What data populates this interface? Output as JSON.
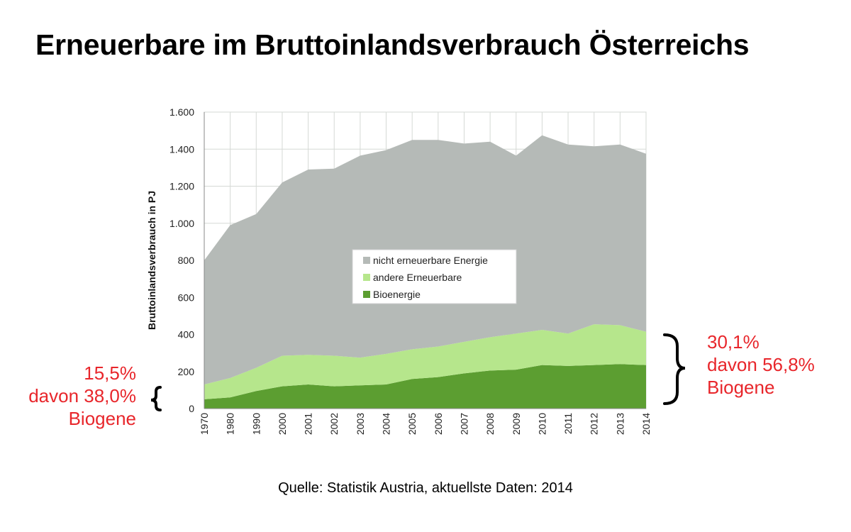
{
  "page": {
    "title": "Erneuerbare im Bruttoinlandsverbrauch Österreichs",
    "source": "Quelle: Statistik Austria, aktuellste Daten: 2014"
  },
  "annotations": {
    "left": [
      "15,5%",
      "davon 38,0%",
      "Biogene"
    ],
    "right": [
      "30,1%",
      "davon 56,8%",
      "Biogene"
    ],
    "color": "#e8262b"
  },
  "chart_data": {
    "type": "area",
    "stacked": true,
    "categories": [
      "1970",
      "1980",
      "1990",
      "2000",
      "2001",
      "2002",
      "2003",
      "2004",
      "2005",
      "2006",
      "2007",
      "2008",
      "2009",
      "2010",
      "2011",
      "2012",
      "2013",
      "2014"
    ],
    "ylabel": "Bruttoinlandsverbrauch in PJ",
    "ylim": [
      0,
      1600
    ],
    "yticks": [
      0,
      200,
      400,
      600,
      800,
      1000,
      1200,
      1400,
      1600
    ],
    "ytick_labels": [
      "0",
      "200",
      "400",
      "600",
      "800",
      "1.000",
      "1.200",
      "1.400",
      "1.600"
    ],
    "grid": true,
    "legend_position": "center",
    "series": [
      {
        "name": "Bioenergie",
        "color": "#5c9e31",
        "values": [
          50,
          60,
          95,
          120,
          130,
          120,
          125,
          130,
          160,
          170,
          190,
          205,
          210,
          235,
          230,
          235,
          240,
          235
        ]
      },
      {
        "name": "andere Erneuerbare",
        "color": "#b6e68c",
        "values": [
          80,
          105,
          125,
          165,
          160,
          165,
          150,
          165,
          160,
          165,
          170,
          180,
          195,
          190,
          175,
          220,
          210,
          180
        ]
      },
      {
        "name": "nicht erneuerbare Energie",
        "color": "#b5bab7",
        "values": [
          670,
          825,
          830,
          935,
          1000,
          1010,
          1090,
          1100,
          1130,
          1115,
          1070,
          1055,
          960,
          1050,
          1020,
          960,
          975,
          960
        ]
      }
    ],
    "legend_order": [
      "nicht erneuerbare Energie",
      "andere Erneuerbare",
      "Bioenergie"
    ]
  }
}
